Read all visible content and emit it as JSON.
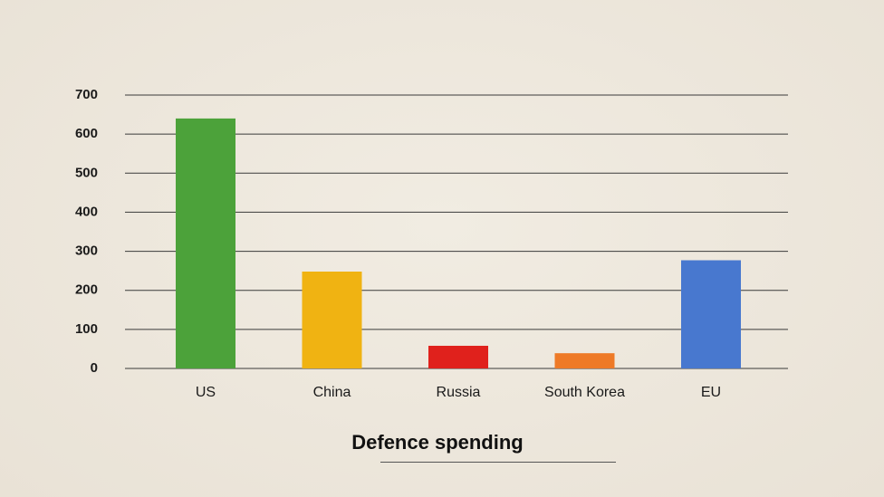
{
  "chart_data": {
    "type": "bar",
    "categories": [
      "US",
      "China",
      "Russia",
      "South Korea",
      "EU"
    ],
    "values": [
      640,
      248,
      58,
      39,
      277
    ],
    "colors": [
      "#4ca23a",
      "#f0b312",
      "#e0211c",
      "#ee7a27",
      "#4878cf"
    ],
    "title": "Defence spending",
    "xlabel": "",
    "ylabel": "",
    "ylim": [
      0,
      700
    ],
    "yticks": [
      0,
      100,
      200,
      300,
      400,
      500,
      600,
      700
    ],
    "grid": true,
    "legend": "none"
  }
}
